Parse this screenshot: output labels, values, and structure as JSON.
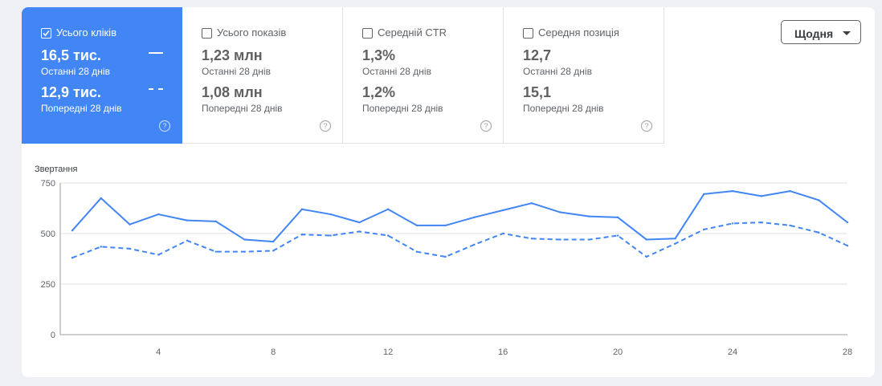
{
  "metrics": [
    {
      "title": "Усього кліків",
      "current": "16,5 тис.",
      "current_label": "Останні 28 днів",
      "previous": "12,9 тис.",
      "previous_label": "Попередні 28 днів",
      "selected": true
    },
    {
      "title": "Усього показів",
      "current": "1,23 млн",
      "current_label": "Останні 28 днів",
      "previous": "1,08 млн",
      "previous_label": "Попередні 28 днів",
      "selected": false
    },
    {
      "title": "Середній CTR",
      "current": "1,3%",
      "current_label": "Останні 28 днів",
      "previous": "1,2%",
      "previous_label": "Попередні 28 днів",
      "selected": false
    },
    {
      "title": "Середня позиція",
      "current": "12,7",
      "current_label": "Останні 28 днів",
      "previous": "15,1",
      "previous_label": "Попередні 28 днів",
      "selected": false
    }
  ],
  "help_glyph": "?",
  "period_dropdown": {
    "label": "Щодня"
  },
  "colors": {
    "accent": "#4285f4",
    "text_muted": "#5f6368",
    "grid": "#e0e0e0"
  },
  "chart_data": {
    "type": "line",
    "ylabel": "Звертання",
    "xlabel": "",
    "x": [
      1,
      2,
      3,
      4,
      5,
      6,
      7,
      8,
      9,
      10,
      11,
      12,
      13,
      14,
      15,
      16,
      17,
      18,
      19,
      20,
      21,
      22,
      23,
      24,
      25,
      26,
      27,
      28
    ],
    "x_ticks": [
      4,
      8,
      12,
      16,
      20,
      24,
      28
    ],
    "y_ticks": [
      0,
      250,
      500,
      750
    ],
    "ylim": [
      0,
      750
    ],
    "xlim": [
      1,
      28
    ],
    "grid": true,
    "series": [
      {
        "style": "solid",
        "values": [
          515,
          675,
          545,
          595,
          565,
          560,
          470,
          460,
          620,
          595,
          555,
          620,
          540,
          540,
          580,
          615,
          650,
          605,
          585,
          580,
          470,
          475,
          695,
          710,
          685,
          710,
          665,
          555
        ]
      },
      {
        "style": "dashed",
        "values": [
          380,
          435,
          425,
          395,
          465,
          410,
          410,
          415,
          495,
          490,
          510,
          490,
          410,
          385,
          445,
          500,
          475,
          470,
          470,
          490,
          385,
          450,
          520,
          550,
          555,
          540,
          505,
          440
        ]
      }
    ]
  }
}
